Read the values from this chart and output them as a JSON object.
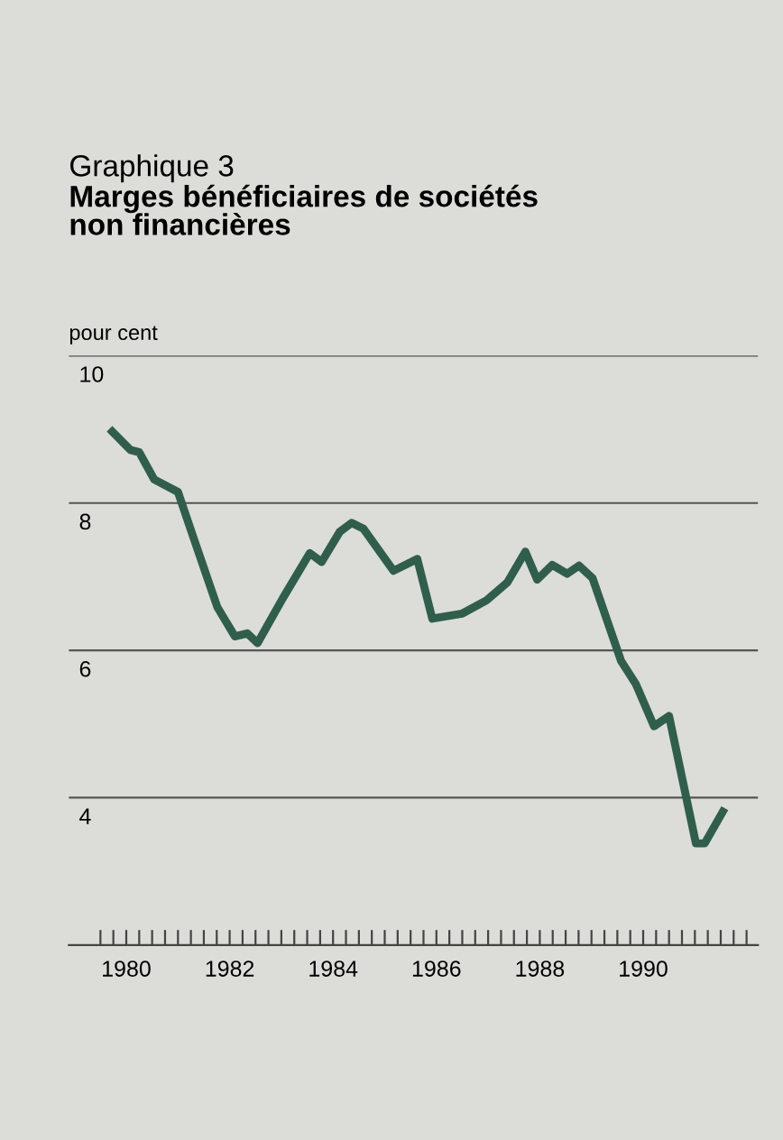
{
  "chart_data": {
    "type": "line",
    "title": "Graphique 3",
    "subtitle": "Marges bénéficiaires de sociétés\nnon financières",
    "ylabel": "pour cent",
    "x": [
      1979.73,
      1980.08,
      1980.25,
      1980.54,
      1981.0,
      1981.3,
      1981.76,
      1982.1,
      1982.34,
      1982.54,
      1983.03,
      1983.55,
      1983.78,
      1984.13,
      1984.36,
      1984.59,
      1985.17,
      1985.63,
      1985.92,
      1986.5,
      1986.97,
      1987.37,
      1987.72,
      1987.95,
      1988.24,
      1988.53,
      1988.76,
      1989.02,
      1989.57,
      1989.86,
      1990.21,
      1990.5,
      1991.02,
      1991.19,
      1991.54
    ],
    "series": [
      {
        "color": "#2f5f4c",
        "values": [
          8.97,
          8.72,
          8.69,
          8.32,
          8.15,
          7.53,
          6.59,
          6.19,
          6.23,
          6.1,
          6.71,
          7.32,
          7.2,
          7.61,
          7.73,
          7.65,
          7.08,
          7.24,
          6.43,
          6.5,
          6.68,
          6.92,
          7.34,
          6.96,
          7.16,
          7.04,
          7.15,
          6.98,
          5.86,
          5.54,
          4.97,
          5.11,
          3.38,
          3.38,
          3.81
        ]
      }
    ],
    "ylim": [
      2,
      10
    ],
    "yticks": [
      4,
      6,
      8,
      10
    ],
    "xlim": [
      1978.89,
      1992.22
    ],
    "xticks": [
      {
        "value": 1979.5,
        "label": null
      },
      {
        "value": 1979.75,
        "label": null
      },
      1980,
      {
        "value": 1980.25,
        "label": null
      },
      {
        "value": 1980.5,
        "label": null
      },
      {
        "value": 1980.75,
        "label": null
      },
      {
        "value": 1981,
        "label": null
      },
      {
        "value": 1981.25,
        "label": null
      },
      {
        "value": 1981.5,
        "label": null
      },
      {
        "value": 1981.75,
        "label": null
      },
      1982,
      {
        "value": 1982.25,
        "label": null
      },
      {
        "value": 1982.5,
        "label": null
      },
      {
        "value": 1982.75,
        "label": null
      },
      {
        "value": 1983,
        "label": null
      },
      {
        "value": 1983.25,
        "label": null
      },
      {
        "value": 1983.5,
        "label": null
      },
      {
        "value": 1983.75,
        "label": null
      },
      1984,
      {
        "value": 1984.25,
        "label": null
      },
      {
        "value": 1984.5,
        "label": null
      },
      {
        "value": 1984.75,
        "label": null
      },
      {
        "value": 1985,
        "label": null
      },
      {
        "value": 1985.25,
        "label": null
      },
      {
        "value": 1985.5,
        "label": null
      },
      {
        "value": 1985.75,
        "label": null
      },
      1986,
      {
        "value": 1986.25,
        "label": null
      },
      {
        "value": 1986.5,
        "label": null
      },
      {
        "value": 1986.75,
        "label": null
      },
      {
        "value": 1987,
        "label": null
      },
      {
        "value": 1987.25,
        "label": null
      },
      {
        "value": 1987.5,
        "label": null
      },
      {
        "value": 1987.75,
        "label": null
      },
      1988,
      {
        "value": 1988.25,
        "label": null
      },
      {
        "value": 1988.5,
        "label": null
      },
      {
        "value": 1988.75,
        "label": null
      },
      {
        "value": 1989,
        "label": null
      },
      {
        "value": 1989.25,
        "label": null
      },
      {
        "value": 1989.5,
        "label": null
      },
      {
        "value": 1989.75,
        "label": null
      },
      1990,
      {
        "value": 1990.25,
        "label": null
      },
      {
        "value": 1990.5,
        "label": null
      },
      {
        "value": 1990.75,
        "label": null
      },
      {
        "value": 1991,
        "label": null
      },
      {
        "value": 1991.25,
        "label": null
      },
      {
        "value": 1991.5,
        "label": null
      },
      {
        "value": 1991.75,
        "label": null
      },
      {
        "value": 1992,
        "label": null
      }
    ],
    "grid": "y",
    "marker": "none",
    "line_style": "solid"
  }
}
